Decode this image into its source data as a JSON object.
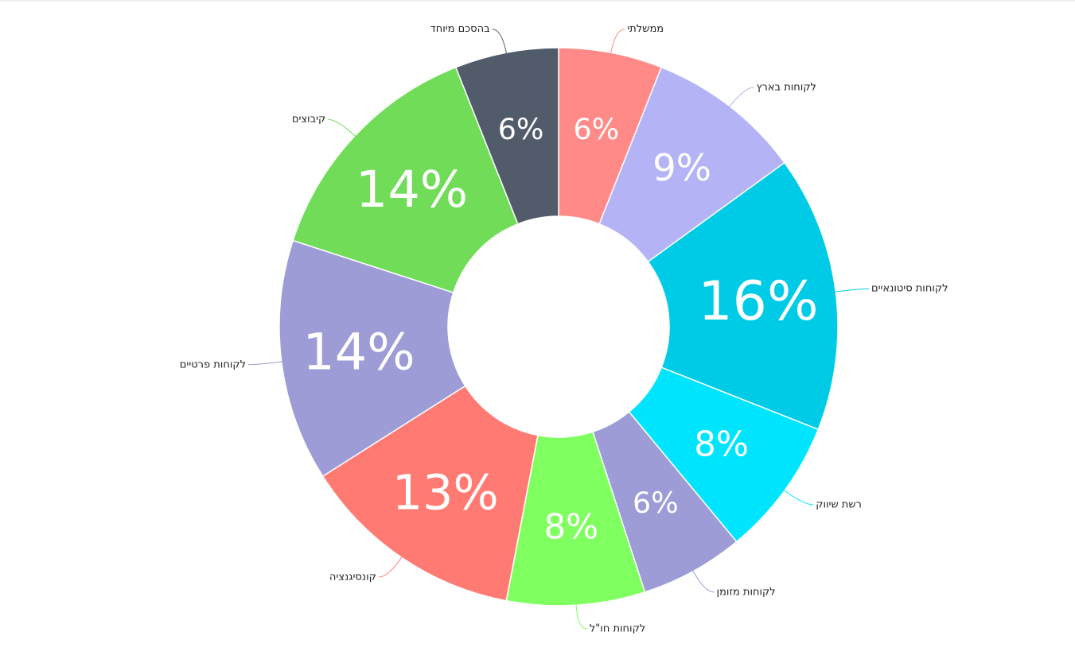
{
  "chart_data": {
    "type": "pie",
    "donut": true,
    "slices": [
      {
        "label": "ממשלתי",
        "value": 6,
        "display": "6%",
        "color": "#FF8A87"
      },
      {
        "label": "לקוחות בארץ",
        "value": 9,
        "display": "9%",
        "color": "#B3B3F5"
      },
      {
        "label": "לקוחות סיטונאיים",
        "value": 16,
        "display": "16%",
        "color": "#00CBE6"
      },
      {
        "label": "רשת שיווק",
        "value": 8,
        "display": "8%",
        "color": "#00E5FF"
      },
      {
        "label": "לקוחות מזומן",
        "value": 6,
        "display": "6%",
        "color": "#9E9CD6"
      },
      {
        "label": "לקוחות חו\"ל",
        "value": 8,
        "display": "8%",
        "color": "#80FF60"
      },
      {
        "label": "קונסיגנציה",
        "value": 13,
        "display": "13%",
        "color": "#FF7A72"
      },
      {
        "label": "לקוחות פרטיים",
        "value": 14,
        "display": "14%",
        "color": "#9E9CD6"
      },
      {
        "label": "קיבוצים",
        "value": 14,
        "display": "14%",
        "color": "#70DC58"
      },
      {
        "label": "בהסכם מיוחד",
        "value": 6,
        "display": "6%",
        "color": "#525B6A"
      }
    ]
  }
}
